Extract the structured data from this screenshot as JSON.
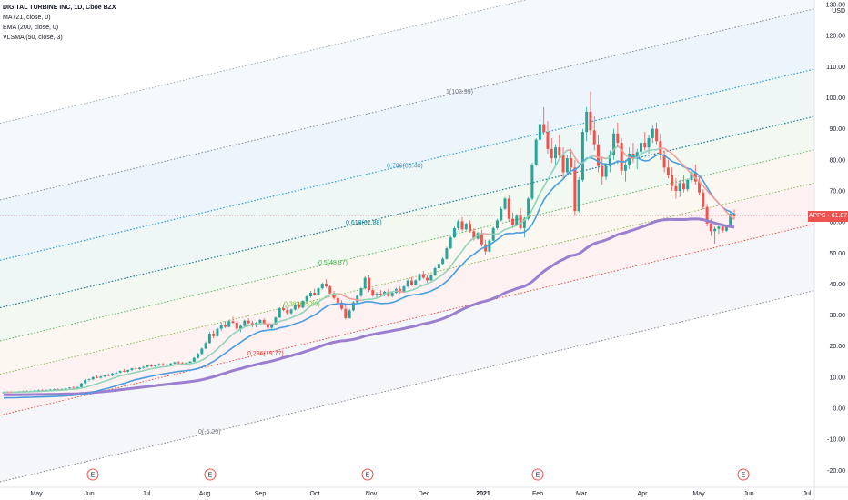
{
  "legend": {
    "title": "DIGITAL TURBINE INC, 1D, Cboe BZX",
    "ma": "MA (21, close, 0)",
    "ema": "EMA (200, close, 0)",
    "vlsma": "VLSMA (50, close, 3)"
  },
  "price_tag": {
    "ticker": "APPS",
    "value": "61.87"
  },
  "colors": {
    "up": "#26a69a",
    "down": "#ef5350",
    "ma": "#8fd3b8",
    "ma_down": "#f0a09c",
    "ema": "#9b7fcf",
    "vlsma": "#4a9ee0"
  },
  "chart_data": {
    "type": "candlestick",
    "currency_label": "USD",
    "y_ticks": [
      "130.00",
      "120.00",
      "110.00",
      "100.00",
      "90.00",
      "80.00",
      "70.00",
      "60.00",
      "50.00",
      "40.00",
      "30.00",
      "20.00",
      "10.00",
      "0.00",
      "-10.00",
      "-20.00"
    ],
    "x_ticks": [
      "May",
      "Jun",
      "Jul",
      "Aug",
      "Sep",
      "Oct",
      "Nov",
      "Dec",
      "2021",
      "Feb",
      "Mar",
      "Apr",
      "May",
      "Jun",
      "Jul"
    ],
    "earnings_marker": "E",
    "ylim": [
      -23,
      130
    ],
    "fib_levels": [
      {
        "label": "1(103.99)",
        "ratio": 1,
        "color": "#787b86"
      },
      {
        "label": "0.786(80.40)",
        "ratio": 0.786,
        "color": "#2a9fd6"
      },
      {
        "label": "0.618(61.88)",
        "ratio": 0.618,
        "color": "#1a7a8a"
      },
      {
        "label": "0.5(48.87)",
        "ratio": 0.5,
        "color": "#4caf50"
      },
      {
        "label": "0.382(35.86)",
        "ratio": 0.382,
        "color": "#7cb342"
      },
      {
        "label": "0.236(19.77)",
        "ratio": 0.236,
        "color": "#e53935"
      },
      {
        "label": "0(-6.25)",
        "ratio": 0,
        "color": "#787b86"
      }
    ],
    "candles": [
      [
        5,
        5.3,
        4.8,
        5.1
      ],
      [
        5.1,
        5.4,
        4.9,
        5.2
      ],
      [
        5.2,
        5.5,
        5,
        5.1
      ],
      [
        5.1,
        5.3,
        4.9,
        5.3
      ],
      [
        5.3,
        5.6,
        5.1,
        5.4
      ],
      [
        5.4,
        5.7,
        5.2,
        5.5
      ],
      [
        5.5,
        5.8,
        5.3,
        5.4
      ],
      [
        5.4,
        5.6,
        5.2,
        5.6
      ],
      [
        5.6,
        5.9,
        5.4,
        5.7
      ],
      [
        5.7,
        6,
        5.5,
        5.8
      ],
      [
        5.8,
        6.1,
        5.6,
        5.7
      ],
      [
        5.7,
        6,
        5.5,
        5.9
      ],
      [
        5.9,
        6.2,
        5.7,
        6
      ],
      [
        6,
        6.3,
        5.8,
        6.1
      ],
      [
        6.1,
        6.4,
        5.9,
        6
      ],
      [
        6,
        6.3,
        5.8,
        6.2
      ],
      [
        6.2,
        6.6,
        6,
        6.4
      ],
      [
        6.4,
        6.8,
        6.2,
        6.6
      ],
      [
        6.6,
        7,
        6.4,
        6.5
      ],
      [
        6.5,
        6.9,
        6.3,
        6.8
      ],
      [
        6.8,
        8.2,
        6.6,
        8
      ],
      [
        8,
        9.4,
        7.8,
        9.1
      ],
      [
        9.1,
        9.6,
        8.6,
        9.3
      ],
      [
        9.3,
        10.2,
        9,
        10
      ],
      [
        10,
        10.6,
        9.6,
        9.8
      ],
      [
        9.8,
        10.4,
        9.5,
        10.2
      ],
      [
        10.2,
        10.8,
        9.9,
        10.6
      ],
      [
        10.6,
        11.2,
        10.3,
        10.5
      ],
      [
        10.5,
        11.4,
        10.3,
        11.2
      ],
      [
        11.2,
        11.8,
        10.9,
        11.5
      ],
      [
        11.5,
        12.2,
        11.2,
        12
      ],
      [
        12,
        12.6,
        11.6,
        11.8
      ],
      [
        11.8,
        12.5,
        11.5,
        12.3
      ],
      [
        12.3,
        13,
        12,
        12.8
      ],
      [
        12.8,
        13.4,
        12.4,
        12.6
      ],
      [
        12.6,
        13.2,
        12.3,
        13
      ],
      [
        13,
        13.6,
        12.7,
        13.3
      ],
      [
        13.3,
        14,
        13,
        13.8
      ],
      [
        13.8,
        14.2,
        13.2,
        13.5
      ],
      [
        13.5,
        14,
        13.2,
        13.9
      ],
      [
        13.9,
        14.5,
        13.5,
        14.2
      ],
      [
        14.2,
        14.6,
        13.6,
        13.8
      ],
      [
        13.8,
        14.4,
        13.5,
        14.1
      ],
      [
        14.1,
        14.6,
        13.8,
        14.4
      ],
      [
        14.4,
        15,
        14,
        14.8
      ],
      [
        14.8,
        15.2,
        14.2,
        14.5
      ],
      [
        14.5,
        14.9,
        13.9,
        14.2
      ],
      [
        14.2,
        14.8,
        13.9,
        14.6
      ],
      [
        14.6,
        15.3,
        14.3,
        15
      ],
      [
        15,
        16.5,
        14.8,
        16.2
      ],
      [
        16.2,
        17.8,
        16,
        17.5
      ],
      [
        17.5,
        19.5,
        17.2,
        19.2
      ],
      [
        19.2,
        21.5,
        19,
        21
      ],
      [
        21,
        24.5,
        20.8,
        24
      ],
      [
        24,
        25,
        22.5,
        23.2
      ],
      [
        23.2,
        26,
        23,
        25.6
      ],
      [
        25.6,
        27.5,
        25,
        26.8
      ],
      [
        26.8,
        28,
        25.8,
        26.2
      ],
      [
        26.2,
        28.5,
        26,
        28
      ],
      [
        28,
        29.5,
        27.2,
        27.5
      ],
      [
        27.5,
        28.2,
        25,
        25.6
      ],
      [
        25.6,
        27,
        24.5,
        26.5
      ],
      [
        26.5,
        28.5,
        26.2,
        28.2
      ],
      [
        28.2,
        29,
        27,
        27.4
      ],
      [
        27.4,
        28.2,
        26,
        26.6
      ],
      [
        26.6,
        27.8,
        26,
        27.5
      ],
      [
        27.5,
        28.8,
        27,
        28.4
      ],
      [
        28.4,
        28.9,
        26.8,
        27.1
      ],
      [
        27.1,
        28,
        25.5,
        25.9
      ],
      [
        25.9,
        27.3,
        25.4,
        27
      ],
      [
        27,
        29.5,
        26.8,
        29.2
      ],
      [
        29.2,
        32.5,
        29,
        32.2
      ],
      [
        32.2,
        33.5,
        31.2,
        31.6
      ],
      [
        31.6,
        32.5,
        30.2,
        30.6
      ],
      [
        30.6,
        32,
        30,
        31.8
      ],
      [
        31.8,
        33.5,
        31.4,
        33.1
      ],
      [
        33.1,
        34.2,
        32,
        32.4
      ],
      [
        32.4,
        34.8,
        32.2,
        34.5
      ],
      [
        34.5,
        36.5,
        34.2,
        36
      ],
      [
        36,
        37.8,
        35.5,
        37.2
      ],
      [
        37.2,
        38.5,
        36.2,
        36.6
      ],
      [
        36.6,
        39,
        36.4,
        38.6
      ],
      [
        38.6,
        40.5,
        38.2,
        40.1
      ],
      [
        40.1,
        41.5,
        38.8,
        39.2
      ],
      [
        39.2,
        39.8,
        36.5,
        37
      ],
      [
        37,
        37.8,
        35,
        35.5
      ],
      [
        35.5,
        36.2,
        33.5,
        34
      ],
      [
        34,
        34.8,
        31.5,
        32
      ],
      [
        32,
        33.5,
        28.5,
        29
      ],
      [
        29,
        32,
        28.8,
        31.5
      ],
      [
        31.5,
        34.5,
        31.2,
        34.1
      ],
      [
        34.1,
        36.5,
        33.8,
        36.2
      ],
      [
        36.2,
        39,
        35.8,
        38.6
      ],
      [
        38.6,
        42.5,
        38.2,
        42
      ],
      [
        42,
        42.8,
        37.5,
        38
      ],
      [
        38,
        38.6,
        35.8,
        36.3
      ],
      [
        36.3,
        37.4,
        35.2,
        36.9
      ],
      [
        36.9,
        38,
        35.9,
        36.4
      ],
      [
        36.4,
        37.8,
        36,
        37.5
      ],
      [
        37.5,
        38.4,
        35.8,
        36.1
      ],
      [
        36.1,
        37.6,
        35.6,
        37.2
      ],
      [
        37.2,
        38.8,
        36.8,
        38.4
      ],
      [
        38.4,
        39.2,
        37,
        37.6
      ],
      [
        37.6,
        39.5,
        37.4,
        39.2
      ],
      [
        39.2,
        41.5,
        38.9,
        41.1
      ],
      [
        41.1,
        42.2,
        39.4,
        39.8
      ],
      [
        39.8,
        41.5,
        39.5,
        41.2
      ],
      [
        41.2,
        43.6,
        41,
        43.2
      ],
      [
        43.2,
        44.2,
        41.6,
        42
      ],
      [
        42,
        42.8,
        40.5,
        41.2
      ],
      [
        41.2,
        43.2,
        41,
        42.8
      ],
      [
        42.8,
        45.5,
        42.5,
        45.1
      ],
      [
        45.1,
        47,
        44.8,
        46.5
      ],
      [
        46.5,
        48.6,
        46,
        48.1
      ],
      [
        48.1,
        52,
        47.8,
        51.5
      ],
      [
        51.5,
        55.5,
        51.2,
        55
      ],
      [
        55,
        58.5,
        54.8,
        58
      ],
      [
        58,
        60.8,
        57.4,
        60.2
      ],
      [
        60.2,
        61.5,
        57,
        57.6
      ],
      [
        57.6,
        59.8,
        57.2,
        59.4
      ],
      [
        59.4,
        60.5,
        56.5,
        57
      ],
      [
        57,
        58,
        54,
        54.6
      ],
      [
        54.6,
        56.8,
        54.2,
        56.4
      ],
      [
        56.4,
        57.5,
        52,
        52.8
      ],
      [
        52.8,
        54.2,
        49.5,
        50.5
      ],
      [
        50.5,
        54.5,
        50.2,
        54
      ],
      [
        54,
        58.5,
        53.8,
        58
      ],
      [
        58,
        61,
        57.5,
        60.5
      ],
      [
        60.5,
        64.8,
        60.2,
        64.2
      ],
      [
        64.2,
        68,
        63.8,
        67.5
      ],
      [
        67.5,
        68.5,
        60,
        61
      ],
      [
        61,
        63,
        58,
        59
      ],
      [
        59,
        62.5,
        58.6,
        62
      ],
      [
        62,
        64.5,
        57.5,
        58
      ],
      [
        58,
        61.5,
        55,
        61
      ],
      [
        61,
        68,
        60.5,
        67.5
      ],
      [
        67.5,
        79,
        67,
        78.5
      ],
      [
        78.5,
        87,
        78,
        86.5
      ],
      [
        86.5,
        93,
        85,
        91.5
      ],
      [
        91.5,
        97,
        88,
        89
      ],
      [
        89,
        92.5,
        82,
        83.5
      ],
      [
        83.5,
        87,
        79,
        80.5
      ],
      [
        80.5,
        85,
        78,
        84
      ],
      [
        84,
        88,
        80,
        81.5
      ],
      [
        81.5,
        84,
        74,
        76
      ],
      [
        76,
        81.5,
        75,
        80.5
      ],
      [
        80.5,
        83.5,
        76,
        77.5
      ],
      [
        77.5,
        80,
        62,
        63.5
      ],
      [
        63.5,
        74.5,
        63,
        73.5
      ],
      [
        73.5,
        90,
        73,
        89
      ],
      [
        89,
        97,
        86,
        95.5
      ],
      [
        95.5,
        102,
        88,
        89.5
      ],
      [
        89.5,
        94,
        83,
        85
      ],
      [
        85,
        88,
        76,
        78
      ],
      [
        78,
        81,
        72,
        74.5
      ],
      [
        74.5,
        79,
        73.5,
        78
      ],
      [
        78,
        83,
        76,
        81.5
      ],
      [
        81.5,
        90,
        80,
        88.5
      ],
      [
        88.5,
        92,
        84,
        85.5
      ],
      [
        85.5,
        87,
        75,
        76.5
      ],
      [
        76.5,
        80,
        73,
        78.5
      ],
      [
        78.5,
        84,
        77,
        82
      ],
      [
        82,
        85.5,
        79,
        80.5
      ],
      [
        80.5,
        83.5,
        77,
        82.5
      ],
      [
        82.5,
        87,
        81,
        85.5
      ],
      [
        85.5,
        89,
        83,
        84
      ],
      [
        84,
        88,
        82,
        87
      ],
      [
        87,
        91,
        85.5,
        90
      ],
      [
        90,
        92,
        85,
        86
      ],
      [
        86,
        88.5,
        80,
        81.5
      ],
      [
        81.5,
        83,
        76,
        77.5
      ],
      [
        77.5,
        80,
        74,
        75
      ],
      [
        75,
        77.5,
        70,
        71.5
      ],
      [
        71.5,
        74,
        67.5,
        70
      ],
      [
        70,
        73.5,
        68,
        72.5
      ],
      [
        72.5,
        75,
        69.5,
        70.5
      ],
      [
        70.5,
        74,
        69.8,
        73.5
      ],
      [
        73.5,
        77,
        72.8,
        76
      ],
      [
        76,
        78.5,
        72,
        73
      ],
      [
        73,
        74.5,
        68.5,
        69.5
      ],
      [
        69.5,
        70.5,
        64,
        64.8
      ],
      [
        64.8,
        65.8,
        58.5,
        59.5
      ],
      [
        59.5,
        61,
        55.5,
        57
      ],
      [
        57,
        58.5,
        53,
        57.8
      ],
      [
        57.8,
        59.6,
        56.2,
        58.5
      ],
      [
        58.5,
        59.5,
        56.5,
        57.2
      ],
      [
        57.2,
        59,
        56.8,
        58.6
      ],
      [
        58.6,
        63.2,
        58.2,
        62.6
      ],
      [
        62.6,
        64,
        60.8,
        61.87
      ]
    ]
  }
}
